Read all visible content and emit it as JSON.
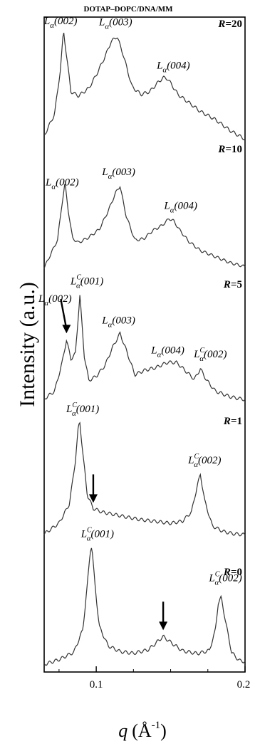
{
  "chart_data": {
    "type": "line",
    "title": "DOTAP–DOPC/DNA/MM",
    "xlabel_var": "q",
    "xlabel_unit": "(Å",
    "xlabel_exp": "-1",
    "xlabel_close": ")",
    "ylabel": "Intensity (a.u.)",
    "xlim": [
      0.065,
      0.2
    ],
    "xticks": [
      "0.1",
      "0.2"
    ],
    "xtick_values": [
      0.1,
      0.2
    ],
    "colors": {
      "line": "#333333",
      "frame": "#000000"
    },
    "series": [
      {
        "name": "R=20",
        "x": [
          0.065,
          0.072,
          0.076,
          0.078,
          0.08,
          0.083,
          0.088,
          0.095,
          0.1,
          0.106,
          0.11,
          0.114,
          0.118,
          0.124,
          0.13,
          0.136,
          0.141,
          0.145,
          0.148,
          0.151,
          0.155,
          0.162,
          0.17,
          0.18,
          0.19,
          0.2
        ],
        "y": [
          0.12,
          0.28,
          0.62,
          0.9,
          0.72,
          0.45,
          0.42,
          0.48,
          0.58,
          0.72,
          0.83,
          0.87,
          0.74,
          0.5,
          0.44,
          0.46,
          0.52,
          0.56,
          0.55,
          0.5,
          0.43,
          0.37,
          0.3,
          0.24,
          0.16,
          0.1
        ],
        "peaks": [
          {
            "pre": "L",
            "sub": "α",
            "idx": "(002)",
            "q": 0.078
          },
          {
            "pre": "L",
            "sub": "α",
            "idx": "(003)",
            "q": 0.114
          },
          {
            "pre": "L",
            "sub": "α",
            "idx": "(004)",
            "q": 0.148
          }
        ]
      },
      {
        "name": "R=10",
        "x": [
          0.065,
          0.074,
          0.077,
          0.079,
          0.081,
          0.084,
          0.088,
          0.095,
          0.102,
          0.108,
          0.113,
          0.116,
          0.12,
          0.126,
          0.132,
          0.138,
          0.144,
          0.149,
          0.152,
          0.156,
          0.162,
          0.17,
          0.18,
          0.19,
          0.2
        ],
        "y": [
          0.05,
          0.3,
          0.62,
          0.8,
          0.58,
          0.32,
          0.28,
          0.33,
          0.4,
          0.56,
          0.72,
          0.78,
          0.52,
          0.3,
          0.31,
          0.38,
          0.42,
          0.48,
          0.46,
          0.38,
          0.28,
          0.2,
          0.15,
          0.1,
          0.07
        ],
        "peaks": [
          {
            "pre": "L",
            "sub": "α",
            "idx": "(002)",
            "q": 0.08
          },
          {
            "pre": "L",
            "sub": "α",
            "idx": "(003)",
            "q": 0.116
          },
          {
            "pre": "L",
            "sub": "α",
            "idx": "(004)",
            "q": 0.152
          }
        ]
      },
      {
        "name": "R=5",
        "x": [
          0.065,
          0.072,
          0.077,
          0.08,
          0.083,
          0.086,
          0.089,
          0.092,
          0.095,
          0.1,
          0.106,
          0.111,
          0.116,
          0.12,
          0.126,
          0.132,
          0.14,
          0.148,
          0.154,
          0.16,
          0.166,
          0.17,
          0.174,
          0.18,
          0.19,
          0.2
        ],
        "y": [
          0.08,
          0.14,
          0.35,
          0.52,
          0.38,
          0.42,
          0.85,
          0.4,
          0.22,
          0.25,
          0.33,
          0.46,
          0.56,
          0.44,
          0.25,
          0.28,
          0.3,
          0.34,
          0.34,
          0.28,
          0.22,
          0.3,
          0.22,
          0.14,
          0.1,
          0.08
        ],
        "peaks": [
          {
            "pre": "L",
            "sub": "α",
            "idx": "(002)",
            "q": 0.08
          },
          {
            "pre": "L",
            "sub": "α",
            "sup": "C",
            "idx": "(001)",
            "q": 0.089
          },
          {
            "pre": "L",
            "sub": "α",
            "idx": "(003)",
            "q": 0.116
          },
          {
            "pre": "L",
            "sub": "α",
            "idx": "(004)",
            "q": 0.15
          },
          {
            "pre": "L",
            "sub": "α",
            "sup": "C",
            "idx": "(002)",
            "q": 0.17
          }
        ]
      },
      {
        "name": "R=1",
        "x": [
          0.065,
          0.075,
          0.082,
          0.086,
          0.088,
          0.089,
          0.091,
          0.094,
          0.098,
          0.104,
          0.112,
          0.12,
          0.13,
          0.14,
          0.15,
          0.158,
          0.164,
          0.168,
          0.17,
          0.173,
          0.178,
          0.185,
          0.192,
          0.2
        ],
        "y": [
          0.06,
          0.14,
          0.28,
          0.6,
          0.85,
          0.88,
          0.65,
          0.34,
          0.24,
          0.21,
          0.19,
          0.17,
          0.15,
          0.14,
          0.13,
          0.15,
          0.22,
          0.42,
          0.5,
          0.3,
          0.12,
          0.08,
          0.06,
          0.05
        ],
        "peaks": [
          {
            "pre": "L",
            "sub": "α",
            "sup": "C",
            "idx": "(001)",
            "q": 0.089
          },
          {
            "pre": "L",
            "sub": "α",
            "sup": "C",
            "idx": "(002)",
            "q": 0.17
          }
        ]
      },
      {
        "name": "R=0",
        "x": [
          0.065,
          0.075,
          0.085,
          0.091,
          0.094,
          0.096,
          0.097,
          0.099,
          0.102,
          0.108,
          0.116,
          0.125,
          0.135,
          0.141,
          0.145,
          0.15,
          0.158,
          0.168,
          0.176,
          0.18,
          0.182,
          0.184,
          0.187,
          0.191,
          0.196,
          0.2
        ],
        "y": [
          0.04,
          0.07,
          0.12,
          0.28,
          0.6,
          0.85,
          0.88,
          0.62,
          0.3,
          0.16,
          0.12,
          0.11,
          0.14,
          0.2,
          0.24,
          0.2,
          0.14,
          0.12,
          0.14,
          0.28,
          0.48,
          0.52,
          0.34,
          0.12,
          0.06,
          0.05
        ],
        "peaks": [
          {
            "pre": "L",
            "sub": "α",
            "sup": "C",
            "idx": "(001)",
            "q": 0.097
          },
          {
            "pre": "L",
            "sub": "α",
            "sup": "C",
            "idx": "(002)",
            "q": 0.184
          }
        ]
      }
    ],
    "arrows": [
      {
        "series": "R=5",
        "q": 0.08
      },
      {
        "series": "R=1",
        "q": 0.098
      },
      {
        "series": "R=0",
        "q": 0.145
      }
    ]
  }
}
